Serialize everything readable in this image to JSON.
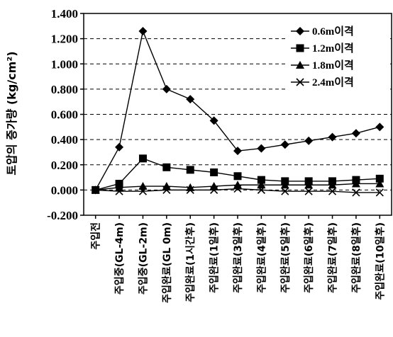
{
  "chart_data": {
    "type": "line",
    "title": "",
    "ylabel": "토압의 증가량 (kg/cm²)",
    "xlabel": "",
    "ylim": [
      -0.2,
      1.4
    ],
    "yticks": [
      -0.2,
      0.0,
      0.2,
      0.4,
      0.6,
      0.8,
      1.0,
      1.2,
      1.4
    ],
    "ytick_labels": [
      "-0.200",
      "0.000",
      "0.200",
      "0.400",
      "0.600",
      "0.800",
      "1.000",
      "1.200",
      "1.400"
    ],
    "grid": "horizontal-dashed",
    "legend_position": "top-right",
    "categories": [
      "주입전",
      "주입중(GL-4m)",
      "주입중(GL-2m)",
      "주입완료(GL 0m)",
      "주입완료(1시간후)",
      "주입완료(1일후)",
      "주입완료(3일후)",
      "주입완료(4일후)",
      "주입완료(5일후)",
      "주입완료(6일후)",
      "주입완료(7일후)",
      "주입완료(8일후)",
      "주입완료(10일후)"
    ],
    "series": [
      {
        "name": "0.6m이격",
        "marker": "diamond",
        "values": [
          0.0,
          0.34,
          1.26,
          0.8,
          0.72,
          0.55,
          0.31,
          0.33,
          0.36,
          0.39,
          0.42,
          0.45,
          0.5
        ]
      },
      {
        "name": "1.2m이격",
        "marker": "square",
        "values": [
          0.0,
          0.05,
          0.25,
          0.18,
          0.16,
          0.14,
          0.11,
          0.08,
          0.07,
          0.07,
          0.07,
          0.08,
          0.09
        ]
      },
      {
        "name": "1.8m이격",
        "marker": "triangle",
        "values": [
          0.0,
          0.02,
          0.03,
          0.03,
          0.02,
          0.03,
          0.04,
          0.04,
          0.04,
          0.04,
          0.04,
          0.05,
          0.05
        ]
      },
      {
        "name": "2.4m이격",
        "marker": "x",
        "values": [
          0.0,
          -0.01,
          -0.01,
          0.0,
          0.0,
          0.0,
          0.01,
          0.0,
          -0.01,
          -0.01,
          -0.01,
          -0.02,
          -0.02
        ]
      }
    ],
    "colors": {
      "line": "#000000",
      "grid": "#000000",
      "background": "#ffffff"
    }
  }
}
